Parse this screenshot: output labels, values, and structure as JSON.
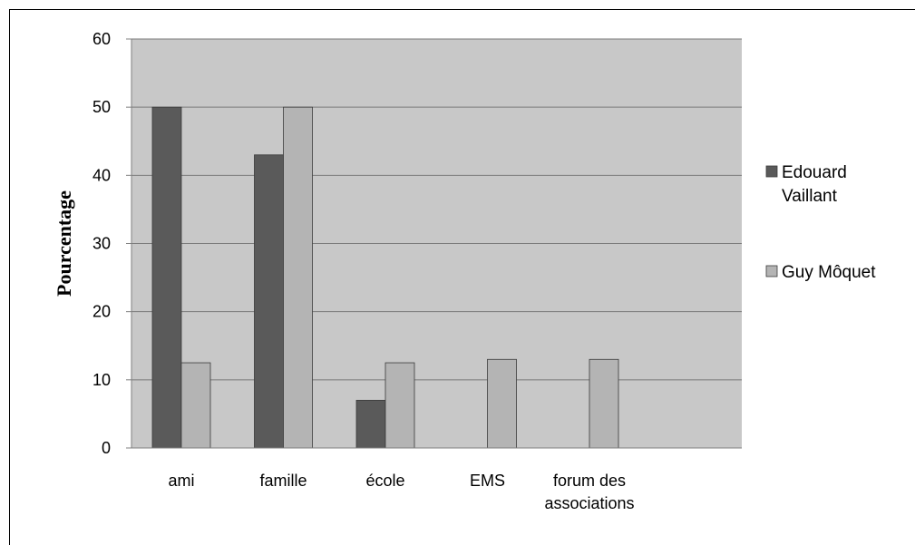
{
  "chart_data": {
    "type": "bar",
    "categories": [
      "ami",
      "famille",
      "école",
      "EMS",
      "forum des associations"
    ],
    "series": [
      {
        "name": "Edouard Vaillant",
        "color": "#5a5a5a",
        "values": [
          50,
          43,
          7,
          null,
          null
        ]
      },
      {
        "name": "Guy Môquet",
        "color": "#b4b4b4",
        "values": [
          12.5,
          50,
          12.5,
          13,
          13
        ]
      }
    ],
    "title": "",
    "xlabel": "",
    "ylabel": "Pourcentage",
    "ylim": [
      0,
      60
    ],
    "yticks": [
      0,
      10,
      20,
      30,
      40,
      50,
      60
    ],
    "grid": true,
    "plot_background": "#c8c8c8",
    "legend_position": "right"
  }
}
